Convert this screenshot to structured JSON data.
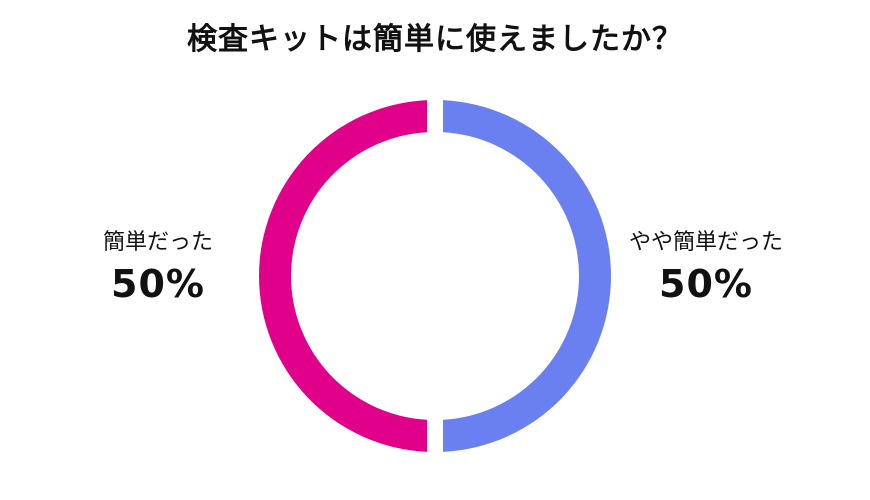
{
  "chart_data": {
    "type": "pie",
    "title": "検査キットは簡単に使えましたか？",
    "categories": [
      "やや簡単だった",
      "簡単だった"
    ],
    "values": [
      50,
      50
    ],
    "value_labels": [
      "50%",
      "50%"
    ],
    "colors": [
      "#6a80f0",
      "#e0008a"
    ],
    "style": "donut",
    "legend": "none"
  }
}
